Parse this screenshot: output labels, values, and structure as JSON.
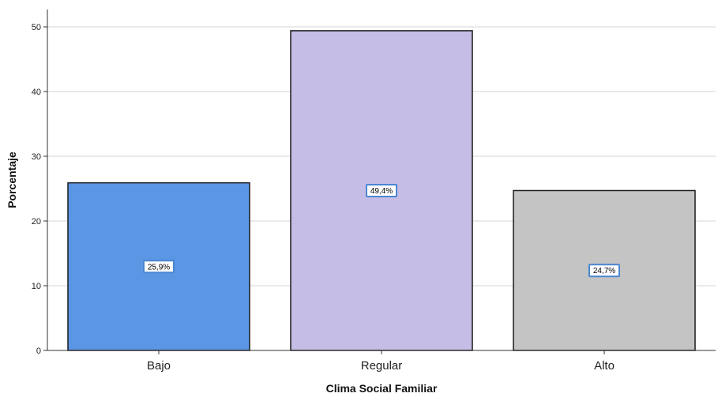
{
  "chart_data": {
    "type": "bar",
    "categories": [
      "Bajo",
      "Regular",
      "Alto"
    ],
    "values": [
      25.9,
      49.4,
      24.7
    ],
    "data_labels": [
      "25,9%",
      "49,4%",
      "24,7%"
    ],
    "colors": [
      "#5b96e4",
      "#c6bde6",
      "#c4c4c4"
    ],
    "xlabel": "Clima Social Familiar",
    "ylabel": "Porcentaje",
    "ylim": [
      0,
      50
    ],
    "yticks": [
      0,
      10,
      20,
      30,
      40,
      50
    ],
    "grid": true,
    "legend": "none"
  }
}
